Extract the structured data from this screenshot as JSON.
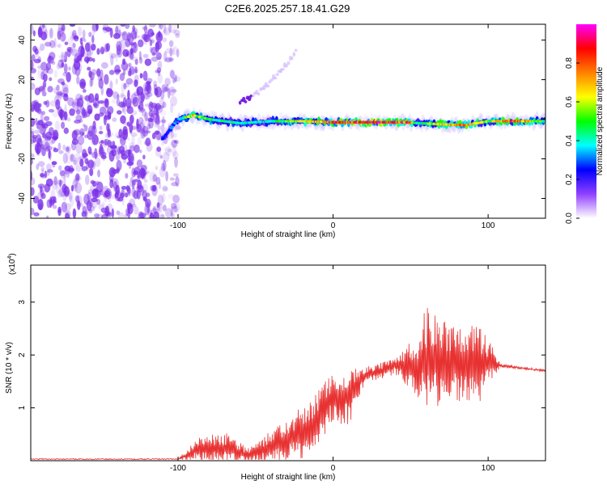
{
  "page": {
    "title": "C2E6.2025.257.18.41.G29"
  },
  "chart_data": [
    {
      "type": "heatmap",
      "xlabel": "Height of straight line (km)",
      "ylabel": "Frequency (Hz)",
      "xlim": [
        -195,
        137
      ],
      "ylim": [
        -50,
        48
      ],
      "xticks": [
        -100,
        0,
        100
      ],
      "xtick_labels": [
        "-100",
        "0",
        "100"
      ],
      "yticks": [
        -40,
        -20,
        0,
        20,
        40
      ],
      "ytick_labels": [
        "-40",
        "-20",
        "0",
        "20",
        "40"
      ],
      "colorbar": {
        "label": "Normalized spectral amplitude",
        "range": [
          0,
          1
        ],
        "ticks": [
          0.0,
          0.2,
          0.4,
          0.6,
          0.8
        ],
        "tick_labels": [
          "0.0",
          "0.2",
          "0.4",
          "0.6",
          "0.8"
        ],
        "stops": [
          "#ffffff",
          "#9040ff",
          "#0000ff",
          "#00ffff",
          "#00ff00",
          "#ffff00",
          "#ff8000",
          "#ff0000",
          "#ff00ff"
        ]
      },
      "noise_region": {
        "x_range": [
          -195,
          -100
        ],
        "freq_range": [
          -50,
          48
        ],
        "color": "#7a2ee8"
      },
      "ridge": [
        {
          "x": -110,
          "freq": -10,
          "amp": 0.25
        },
        {
          "x": -100,
          "freq": 0,
          "amp": 0.35
        },
        {
          "x": -90,
          "freq": 2,
          "amp": 0.7
        },
        {
          "x": -80,
          "freq": 0,
          "amp": 0.5
        },
        {
          "x": -60,
          "freq": -2,
          "amp": 0.45
        },
        {
          "x": -40,
          "freq": -1,
          "amp": 0.4
        },
        {
          "x": -20,
          "freq": -1,
          "amp": 0.7
        },
        {
          "x": 0,
          "freq": -1.5,
          "amp": 0.85
        },
        {
          "x": 20,
          "freq": -1.5,
          "amp": 0.95
        },
        {
          "x": 48,
          "freq": -1.5,
          "amp": 0.9
        },
        {
          "x": 55,
          "freq": -2,
          "amp": 0.4
        },
        {
          "x": 70,
          "freq": -2.5,
          "amp": 0.75
        },
        {
          "x": 85,
          "freq": -3,
          "amp": 0.8
        },
        {
          "x": 100,
          "freq": -1,
          "amp": 0.55
        },
        {
          "x": 115,
          "freq": -1,
          "amp": 0.9
        },
        {
          "x": 137,
          "freq": -1,
          "amp": 0.5
        }
      ],
      "faint_branch": [
        {
          "x": -60,
          "freq": 8
        },
        {
          "x": -45,
          "freq": 15
        },
        {
          "x": -30,
          "freq": 28
        },
        {
          "x": -23,
          "freq": 35
        }
      ]
    },
    {
      "type": "line",
      "xlabel": "Height of straight line (km)",
      "ylabel": "SNR (10 * v/v)",
      "y_multiplier": "(x10",
      "y_multiplier_exp": "4",
      "y_multiplier_close": ")",
      "xlim": [
        -195,
        137
      ],
      "ylim": [
        0,
        3.7
      ],
      "xticks": [
        -100,
        0,
        100
      ],
      "xtick_labels": [
        "-100",
        "0",
        "100"
      ],
      "yticks": [
        1,
        2,
        3
      ],
      "ytick_labels": [
        "1",
        "2",
        "3"
      ],
      "series": [
        {
          "name": "SNR",
          "color": "#e83232",
          "envelope": [
            {
              "x": -195,
              "base": 0.03,
              "amp": 0.0
            },
            {
              "x": -100,
              "base": 0.03,
              "amp": 0.0
            },
            {
              "x": -88,
              "base": 0.2,
              "amp": 0.4
            },
            {
              "x": -70,
              "base": 0.25,
              "amp": 0.5
            },
            {
              "x": -55,
              "base": 0.1,
              "amp": 0.25
            },
            {
              "x": -45,
              "base": 0.2,
              "amp": 0.4
            },
            {
              "x": -30,
              "base": 0.4,
              "amp": 0.7
            },
            {
              "x": -15,
              "base": 0.6,
              "amp": 0.9
            },
            {
              "x": 0,
              "base": 1.2,
              "amp": 0.8
            },
            {
              "x": 10,
              "base": 1.2,
              "amp": 0.9
            },
            {
              "x": 20,
              "base": 1.6,
              "amp": 0.3
            },
            {
              "x": 40,
              "base": 1.8,
              "amp": 0.25
            },
            {
              "x": 55,
              "base": 1.8,
              "amp": 1.0
            },
            {
              "x": 60,
              "base": 1.9,
              "amp": 1.8
            },
            {
              "x": 75,
              "base": 1.9,
              "amp": 1.2
            },
            {
              "x": 95,
              "base": 1.8,
              "amp": 1.3
            },
            {
              "x": 103,
              "base": 1.85,
              "amp": 0.5
            },
            {
              "x": 108,
              "base": 1.8,
              "amp": 0.05
            },
            {
              "x": 137,
              "base": 1.7,
              "amp": 0.03
            }
          ]
        }
      ]
    }
  ]
}
